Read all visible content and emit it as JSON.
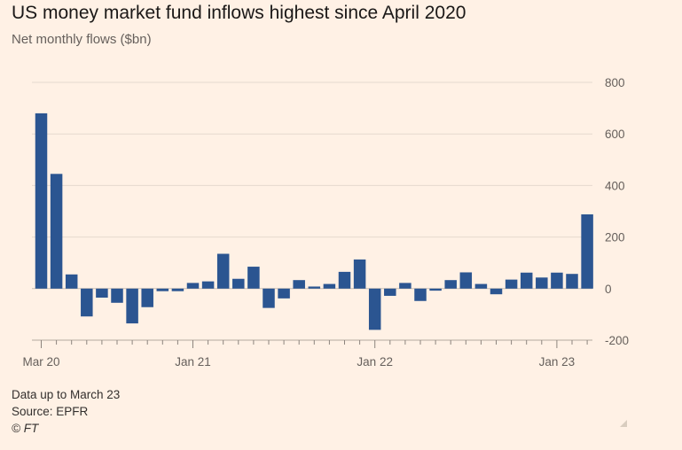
{
  "title": "US money market fund inflows highest since April 2020",
  "subtitle": "Net monthly flows ($bn)",
  "footer": {
    "note": "Data up to March 23",
    "source": "Source: EPFR",
    "copyright": "© FT"
  },
  "colors": {
    "bar": "#2b5591",
    "background": "#fff1e5",
    "grid": "#e6d9ce"
  },
  "chart_data": {
    "type": "bar",
    "title": "US money market fund inflows highest since April 2020",
    "subtitle": "Net monthly flows ($bn)",
    "ylim": [
      -200,
      800
    ],
    "yticks": [
      800,
      600,
      400,
      200,
      0,
      -200
    ],
    "ytick_labels": [
      "800",
      "600",
      "400",
      "200",
      "0",
      "-200"
    ],
    "grid": true,
    "y_axis_side": "right",
    "categories": [
      "Mar 20",
      "Apr 20",
      "May 20",
      "Jun 20",
      "Jul 20",
      "Aug 20",
      "Sep 20",
      "Oct 20",
      "Nov 20",
      "Dec 20",
      "Jan 21",
      "Feb 21",
      "Mar 21",
      "Apr 21",
      "May 21",
      "Jun 21",
      "Jul 21",
      "Aug 21",
      "Sep 21",
      "Oct 21",
      "Nov 21",
      "Dec 21",
      "Jan 22",
      "Feb 22",
      "Mar 22",
      "Apr 22",
      "May 22",
      "Jun 22",
      "Jul 22",
      "Aug 22",
      "Sep 22",
      "Oct 22",
      "Nov 22",
      "Dec 22",
      "Jan 23",
      "Feb 23",
      "Mar 23"
    ],
    "values": [
      680,
      445,
      55,
      -108,
      -35,
      -55,
      -135,
      -72,
      -10,
      -10,
      22,
      28,
      135,
      38,
      85,
      -75,
      -38,
      33,
      8,
      18,
      65,
      113,
      -160,
      -28,
      22,
      -48,
      -8,
      33,
      63,
      18,
      -22,
      35,
      62,
      43,
      62,
      57,
      288
    ],
    "xtick_labels": [
      "Mar 20",
      "Jan 21",
      "Jan 22",
      "Jan 23"
    ],
    "xtick_indices": [
      0,
      10,
      22,
      34
    ]
  }
}
